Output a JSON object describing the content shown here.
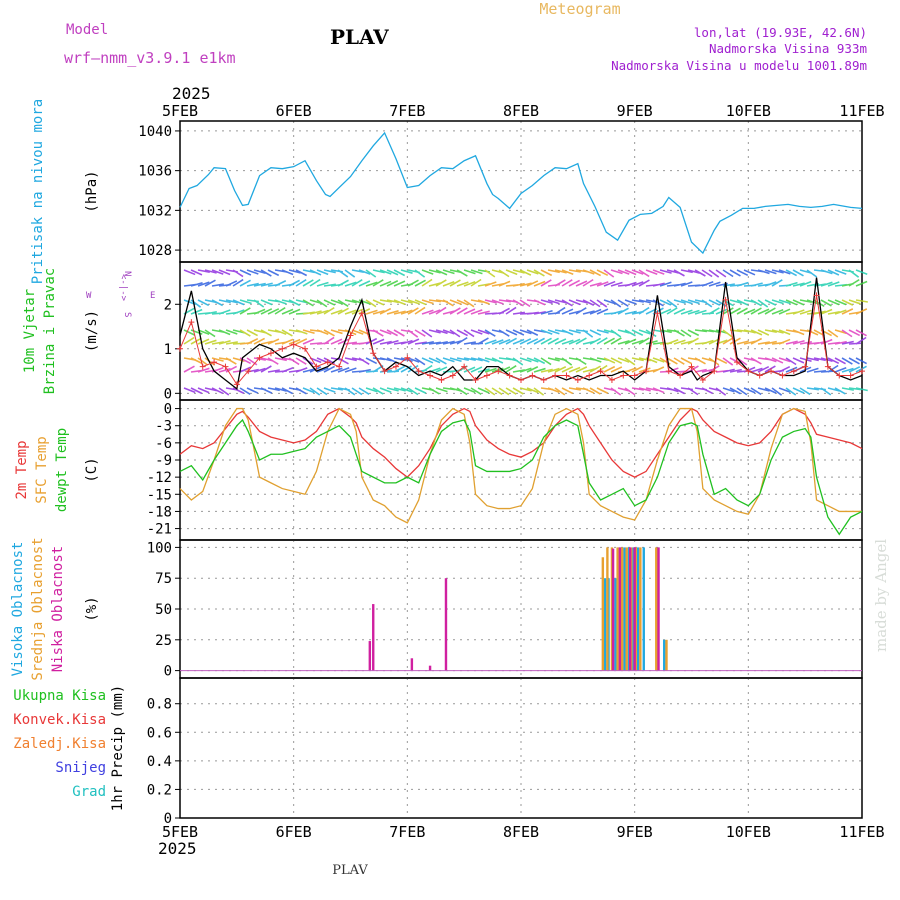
{
  "header": {
    "model_label": "Model",
    "model_name": "wrf—nmm_v3.9.1 e1km",
    "station": "PLAV",
    "title": "Meteogram",
    "lonlat": "lon,lat (19.93E, 42.6N)",
    "elevation": "Nadmorska Visina 933m",
    "model_elevation": "Nadmorska Visina u modelu 1001.89m",
    "footer_station": "PLAV",
    "watermark": "made by Angel",
    "year": "2025",
    "colors": {
      "model": "#c040c0",
      "title": "#e8b860",
      "info": "#a020d0"
    }
  },
  "x_axis": {
    "ticks": [
      "5FEB",
      "6FEB",
      "7FEB",
      "8FEB",
      "9FEB",
      "10FEB",
      "11FEB"
    ]
  },
  "chart_data": [
    {
      "type": "line",
      "panel": "pressure",
      "ylabel": [
        "Pritisak na nivou mora",
        "(hPa)"
      ],
      "ylabel_colors": [
        "#20a8e0",
        "#000000"
      ],
      "y_ticks": [
        1028,
        1032,
        1036,
        1040
      ],
      "ylim": [
        1026.8,
        1041.0
      ],
      "series": [
        {
          "color": "#20a8e0",
          "x": [
            0,
            0.08,
            0.15,
            0.25,
            0.3,
            0.4,
            0.48,
            0.55,
            0.6,
            0.7,
            0.8,
            0.9,
            1.0,
            1.1,
            1.2,
            1.28,
            1.32,
            1.4,
            1.5,
            1.6,
            1.7,
            1.8,
            1.9,
            2.0,
            2.1,
            2.2,
            2.3,
            2.4,
            2.5,
            2.6,
            2.7,
            2.75,
            2.8,
            2.9,
            3.0,
            3.1,
            3.2,
            3.3,
            3.4,
            3.5,
            3.55,
            3.65,
            3.75,
            3.85,
            3.95,
            4.05,
            4.15,
            4.25,
            4.3,
            4.4,
            4.5,
            4.6,
            4.7,
            4.75,
            4.85,
            4.95,
            5.05,
            5.15,
            5.25,
            5.35,
            5.45,
            5.55,
            5.65,
            5.75,
            5.85,
            5.9,
            6.0
          ],
          "y": [
            1032.3,
            1034.2,
            1034.5,
            1035.6,
            1036.3,
            1036.2,
            1034.0,
            1032.5,
            1032.6,
            1035.5,
            1036.3,
            1036.2,
            1036.4,
            1037.0,
            1035.0,
            1033.6,
            1033.4,
            1034.3,
            1035.4,
            1037.0,
            1038.5,
            1039.8,
            1037.2,
            1034.3,
            1034.5,
            1035.5,
            1036.3,
            1036.2,
            1037.0,
            1037.5,
            1034.7,
            1033.6,
            1033.2,
            1032.2,
            1033.7,
            1034.5,
            1035.5,
            1036.3,
            1036.2,
            1036.7,
            1034.7,
            1032.4,
            1029.8,
            1029.0,
            1031.0,
            1031.6,
            1031.7,
            1032.4,
            1033.3,
            1032.3,
            1028.8,
            1027.7,
            1030.0,
            1030.9,
            1031.5,
            1032.2,
            1032.2,
            1032.4,
            1032.5,
            1032.6,
            1032.4,
            1032.3,
            1032.4,
            1032.6,
            1032.4,
            1032.3,
            1032.2
          ]
        }
      ]
    },
    {
      "type": "line",
      "panel": "wind",
      "ylabel": [
        "10m Vjetar",
        "Brzina i Pravac",
        "(m/s)"
      ],
      "ylabel_colors": [
        "#20c020",
        "#20c020",
        "#000000"
      ],
      "compass": {
        "n": "N",
        "w": "W",
        "e": "E",
        "s": "S",
        "arrows": "<-|->"
      },
      "y_ticks": [
        0,
        1,
        2
      ],
      "ylim": [
        -0.15,
        2.95
      ],
      "series": [
        {
          "name": "speed",
          "color": "#000000",
          "x": [
            0,
            0.05,
            0.1,
            0.2,
            0.3,
            0.4,
            0.5,
            0.55,
            0.6,
            0.7,
            0.8,
            0.9,
            1.0,
            1.1,
            1.2,
            1.3,
            1.4,
            1.5,
            1.6,
            1.7,
            1.8,
            1.9,
            2.0,
            2.1,
            2.2,
            2.3,
            2.4,
            2.5,
            2.6,
            2.7,
            2.8,
            2.9,
            3.0,
            3.1,
            3.2,
            3.3,
            3.4,
            3.5,
            3.6,
            3.7,
            3.8,
            3.9,
            4.0,
            4.1,
            4.2,
            4.3,
            4.4,
            4.5,
            4.55,
            4.6,
            4.7,
            4.8,
            4.9,
            5.0,
            5.1,
            5.2,
            5.3,
            5.4,
            5.5,
            5.6,
            5.7,
            5.8,
            5.9,
            6.0
          ],
          "y": [
            1.3,
            1.8,
            2.3,
            1.0,
            0.5,
            0.3,
            0.1,
            0.8,
            0.9,
            1.1,
            1.0,
            0.8,
            0.9,
            0.8,
            0.5,
            0.6,
            0.8,
            1.5,
            2.1,
            0.9,
            0.5,
            0.7,
            0.6,
            0.4,
            0.5,
            0.4,
            0.6,
            0.3,
            0.3,
            0.6,
            0.6,
            0.4,
            0.3,
            0.4,
            0.3,
            0.4,
            0.3,
            0.4,
            0.3,
            0.4,
            0.4,
            0.5,
            0.3,
            0.5,
            2.2,
            0.6,
            0.4,
            0.5,
            0.3,
            0.4,
            0.5,
            2.5,
            0.8,
            0.5,
            0.4,
            0.5,
            0.4,
            0.4,
            0.5,
            2.6,
            0.6,
            0.4,
            0.3,
            0.4
          ]
        },
        {
          "name": "gust",
          "color": "#e83838",
          "x": [
            0,
            0.1,
            0.2,
            0.3,
            0.4,
            0.5,
            0.6,
            0.7,
            0.8,
            0.9,
            1.0,
            1.1,
            1.2,
            1.3,
            1.4,
            1.5,
            1.6,
            1.7,
            1.8,
            1.9,
            2.0,
            2.1,
            2.2,
            2.3,
            2.4,
            2.5,
            2.6,
            2.7,
            2.8,
            2.9,
            3.0,
            3.1,
            3.2,
            3.3,
            3.4,
            3.5,
            3.6,
            3.7,
            3.8,
            3.9,
            4.0,
            4.1,
            4.2,
            4.3,
            4.4,
            4.5,
            4.6,
            4.7,
            4.8,
            4.9,
            5.0,
            5.1,
            5.2,
            5.3,
            5.4,
            5.5,
            5.6,
            5.7,
            5.8,
            5.9,
            6.0
          ],
          "y": [
            1.0,
            1.6,
            0.6,
            0.7,
            0.6,
            0.2,
            0.5,
            0.8,
            0.9,
            1.0,
            1.1,
            1.0,
            0.6,
            0.7,
            0.6,
            1.3,
            1.8,
            0.9,
            0.5,
            0.6,
            0.8,
            0.5,
            0.4,
            0.3,
            0.4,
            0.6,
            0.3,
            0.4,
            0.5,
            0.4,
            0.3,
            0.4,
            0.3,
            0.4,
            0.4,
            0.3,
            0.4,
            0.5,
            0.3,
            0.4,
            0.4,
            0.5,
            1.8,
            0.5,
            0.4,
            0.6,
            0.3,
            0.5,
            2.1,
            0.7,
            0.5,
            0.4,
            0.5,
            0.4,
            0.5,
            0.6,
            2.2,
            0.6,
            0.4,
            0.4,
            0.5
          ]
        }
      ]
    },
    {
      "type": "line",
      "panel": "temperature",
      "ylabel": [
        "2m Temp",
        "SFC Temp",
        "dewpt Temp",
        "(C)"
      ],
      "ylabel_colors": [
        "#e83838",
        "#e8a030",
        "#20c020",
        "#000000"
      ],
      "y_ticks": [
        0,
        -3,
        -6,
        -9,
        -12,
        -15,
        -18,
        -21
      ],
      "ylim": [
        -23.0,
        1.5
      ],
      "series": [
        {
          "name": "2m Temp",
          "color": "#e83838",
          "x": [
            0,
            0.1,
            0.2,
            0.3,
            0.4,
            0.5,
            0.55,
            0.6,
            0.7,
            0.8,
            0.9,
            1.0,
            1.1,
            1.2,
            1.3,
            1.4,
            1.5,
            1.55,
            1.6,
            1.7,
            1.8,
            1.9,
            2.0,
            2.1,
            2.2,
            2.3,
            2.4,
            2.5,
            2.55,
            2.6,
            2.7,
            2.8,
            2.9,
            3.0,
            3.1,
            3.2,
            3.3,
            3.4,
            3.5,
            3.55,
            3.6,
            3.7,
            3.8,
            3.9,
            4.0,
            4.1,
            4.2,
            4.3,
            4.4,
            4.5,
            4.55,
            4.6,
            4.7,
            4.8,
            4.9,
            5.0,
            5.1,
            5.2,
            5.3,
            5.4,
            5.5,
            5.55,
            5.6,
            5.7,
            5.8,
            5.9,
            6.0
          ],
          "y": [
            -8.0,
            -6.5,
            -7.0,
            -6.0,
            -3.5,
            -1.0,
            -0.5,
            -1.5,
            -4.0,
            -5.0,
            -5.5,
            -6.0,
            -5.5,
            -4.0,
            -1.0,
            0.0,
            -1.5,
            -2.5,
            -5.0,
            -7.0,
            -8.5,
            -10.5,
            -12.0,
            -10.0,
            -7.0,
            -3.0,
            -1.0,
            0.0,
            -0.5,
            -3.0,
            -5.5,
            -7.0,
            -8.0,
            -8.5,
            -7.5,
            -6.0,
            -3.0,
            -1.0,
            0.0,
            -1.0,
            -3.0,
            -6.0,
            -9.0,
            -11.0,
            -12.0,
            -11.0,
            -8.0,
            -5.0,
            -2.0,
            0.0,
            -0.5,
            -2.0,
            -4.0,
            -5.0,
            -6.0,
            -6.5,
            -6.0,
            -4.0,
            -1.0,
            0.0,
            -1.0,
            -2.5,
            -4.5,
            -5.0,
            -5.5,
            -6.0,
            -7.0
          ]
        },
        {
          "name": "SFC Temp",
          "color": "#e0a030",
          "x": [
            0,
            0.05,
            0.1,
            0.2,
            0.3,
            0.4,
            0.5,
            0.55,
            0.6,
            0.7,
            0.8,
            0.9,
            1.0,
            1.1,
            1.2,
            1.3,
            1.4,
            1.5,
            1.55,
            1.6,
            1.7,
            1.8,
            1.9,
            2.0,
            2.1,
            2.2,
            2.3,
            2.4,
            2.5,
            2.55,
            2.6,
            2.7,
            2.8,
            2.9,
            3.0,
            3.1,
            3.2,
            3.3,
            3.4,
            3.5,
            3.55,
            3.6,
            3.7,
            3.8,
            3.9,
            4.0,
            4.1,
            4.2,
            4.3,
            4.4,
            4.5,
            4.55,
            4.6,
            4.7,
            4.8,
            4.9,
            5.0,
            5.1,
            5.2,
            5.3,
            5.4,
            5.5,
            5.55,
            5.6,
            5.7,
            5.8,
            5.9,
            6.0
          ],
          "y": [
            -14.0,
            -15.0,
            -16.0,
            -14.5,
            -9.0,
            -3.0,
            0.0,
            0.0,
            -2.0,
            -12.0,
            -13.0,
            -14.0,
            -14.5,
            -15.0,
            -11.0,
            -4.0,
            0.0,
            -1.0,
            -4.0,
            -12.0,
            -16.0,
            -17.0,
            -19.0,
            -20.0,
            -16.0,
            -8.0,
            -2.0,
            0.0,
            -1.0,
            -6.0,
            -15.0,
            -17.0,
            -17.5,
            -17.5,
            -17.0,
            -14.0,
            -6.0,
            -1.0,
            0.0,
            -1.0,
            -6.0,
            -15.0,
            -17.0,
            -18.0,
            -19.0,
            -19.5,
            -16.0,
            -9.0,
            -3.0,
            0.0,
            0.0,
            -4.0,
            -14.0,
            -16.0,
            -17.0,
            -18.0,
            -18.5,
            -15.0,
            -7.0,
            -1.0,
            0.0,
            -0.5,
            -6.0,
            -16.0,
            -17.0,
            -18.0,
            -18.0,
            -18.0
          ]
        },
        {
          "name": "dewpt Temp",
          "color": "#20c020",
          "x": [
            0,
            0.1,
            0.2,
            0.3,
            0.4,
            0.5,
            0.55,
            0.6,
            0.7,
            0.8,
            0.9,
            1.0,
            1.1,
            1.2,
            1.3,
            1.4,
            1.5,
            1.55,
            1.6,
            1.7,
            1.8,
            1.9,
            2.0,
            2.1,
            2.2,
            2.3,
            2.4,
            2.5,
            2.55,
            2.6,
            2.7,
            2.8,
            2.9,
            3.0,
            3.1,
            3.2,
            3.3,
            3.4,
            3.5,
            3.55,
            3.6,
            3.7,
            3.8,
            3.9,
            4.0,
            4.1,
            4.2,
            4.3,
            4.4,
            4.5,
            4.55,
            4.6,
            4.7,
            4.8,
            4.9,
            5.0,
            5.1,
            5.2,
            5.3,
            5.4,
            5.5,
            5.55,
            5.6,
            5.7,
            5.8,
            5.9,
            6.0
          ],
          "y": [
            -11.0,
            -10.0,
            -12.5,
            -9.0,
            -6.0,
            -3.0,
            -2.0,
            -4.0,
            -9.0,
            -8.0,
            -8.0,
            -7.5,
            -7.0,
            -5.0,
            -4.0,
            -3.0,
            -5.0,
            -8.0,
            -11.0,
            -12.0,
            -13.0,
            -13.0,
            -12.0,
            -13.0,
            -8.0,
            -4.0,
            -2.5,
            -2.0,
            -4.0,
            -10.0,
            -11.0,
            -11.0,
            -11.0,
            -10.5,
            -9.0,
            -5.0,
            -3.0,
            -2.0,
            -3.0,
            -8.0,
            -13.0,
            -16.0,
            -15.0,
            -14.0,
            -17.0,
            -16.0,
            -12.0,
            -6.0,
            -3.0,
            -2.5,
            -3.0,
            -8.0,
            -15.0,
            -14.0,
            -16.0,
            -17.0,
            -15.0,
            -9.0,
            -5.0,
            -4.0,
            -3.5,
            -5.0,
            -12.0,
            -19.0,
            -22.0,
            -19.0,
            -18.0
          ]
        }
      ]
    },
    {
      "type": "bar",
      "panel": "cloud",
      "ylabel": [
        "Visoka Oblacnost",
        "Srednja Oblacnost",
        "Niska Oblacnost",
        "(%)"
      ],
      "ylabel_colors": [
        "#20a8e0",
        "#e8a030",
        "#d020a0",
        "#000000"
      ],
      "y_ticks": [
        0,
        25,
        50,
        75,
        100
      ],
      "ylim": [
        -6,
        106
      ],
      "series": [
        {
          "name": "Visoka Oblacnost",
          "color": "#20a8e0",
          "x": [
            3.74,
            3.77,
            3.83,
            3.87,
            3.91,
            3.95,
            3.99,
            4.03,
            4.08,
            4.2,
            4.26
          ],
          "y": [
            75,
            75,
            75,
            100,
            100,
            100,
            100,
            100,
            100,
            100,
            25
          ]
        },
        {
          "name": "Srednja Oblacnost",
          "color": "#e8a030",
          "x": [
            3.72,
            3.76,
            3.8,
            3.85,
            3.89,
            3.93,
            3.97,
            4.01,
            4.05,
            4.19,
            4.28
          ],
          "y": [
            92,
            100,
            100,
            100,
            100,
            100,
            100,
            100,
            100,
            100,
            25
          ]
        },
        {
          "name": "Niska Oblacnost",
          "color": "#d020a0",
          "x": [
            1.67,
            1.7,
            2.04,
            2.2,
            2.34,
            3.81,
            3.87,
            3.96,
            4.0,
            4.21
          ],
          "y": [
            24,
            54,
            10,
            4,
            75,
            99,
            100,
            100,
            100,
            100
          ]
        }
      ]
    },
    {
      "type": "line",
      "panel": "precip",
      "ylabel": [
        "1hr Precip (mm)"
      ],
      "ylabel_colors": [
        "#000000"
      ],
      "legend": [
        {
          "label": "Ukupna Kisa",
          "color": "#20c020"
        },
        {
          "label": "Konvek.Kisa",
          "color": "#e83838"
        },
        {
          "label": "Zaledj.Kisa",
          "color": "#f08030"
        },
        {
          "label": "Snijeg",
          "color": "#4040e0"
        },
        {
          "label": "Grad",
          "color": "#20c0c0"
        }
      ],
      "y_ticks": [
        0,
        0.2,
        0.4,
        0.6,
        0.8
      ],
      "ylim": [
        0,
        0.98
      ],
      "series": []
    }
  ]
}
